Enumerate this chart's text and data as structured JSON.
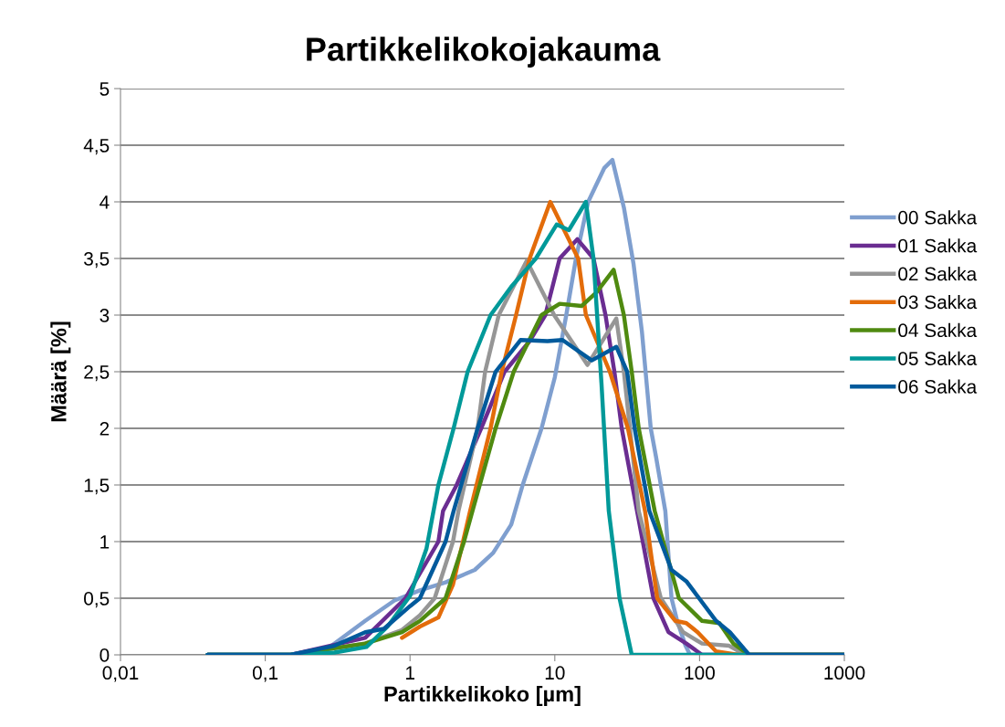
{
  "chart_data": {
    "type": "line",
    "title": "Partikkelikokojakauma",
    "xlabel": "Partikkelikoko [µm]",
    "ylabel": "Määrä [%]",
    "log": "x",
    "xlim": [
      0.01,
      1000
    ],
    "xticks": [
      {
        "value": 0.01,
        "label": "0,01"
      },
      {
        "value": 0.1,
        "label": "0,1"
      },
      1,
      10,
      100,
      1000
    ],
    "ylim": [
      0,
      5
    ],
    "yticks": [
      0,
      {
        "value": 0.5,
        "label": "0,5"
      },
      1,
      {
        "value": 1.5,
        "label": "1,5"
      },
      2,
      {
        "value": 2.5,
        "label": "2,5"
      },
      3,
      {
        "value": 3.5,
        "label": "3,5"
      },
      4,
      {
        "value": 4.5,
        "label": "4,5"
      },
      5
    ],
    "grid": "y",
    "legend": "right",
    "marker": "none",
    "line_style": "solid",
    "series": [
      {
        "name": "00 Sakka",
        "color": "#7f9fcf",
        "x": [
          0.04,
          0.15,
          0.28,
          0.49,
          0.78,
          1.17,
          1.76,
          2.8,
          3.75,
          5,
          6,
          8.1,
          10,
          12,
          14,
          17,
          22,
          25,
          30,
          35,
          40,
          46,
          50,
          58,
          64,
          70,
          80,
          86,
          1000
        ],
        "values": [
          0,
          0,
          0.07,
          0.3,
          0.48,
          0.57,
          0.64,
          0.75,
          0.9,
          1.15,
          1.5,
          2.0,
          2.45,
          3.0,
          3.5,
          4.0,
          4.3,
          4.37,
          3.95,
          3.45,
          2.85,
          2.0,
          1.75,
          1.27,
          0.5,
          0.3,
          0.08,
          0,
          0
        ]
      },
      {
        "name": "01 Sakka",
        "color": "#6a2d91",
        "x": [
          0.04,
          0.15,
          0.49,
          0.93,
          1.57,
          1.69,
          2.1,
          3.1,
          4.5,
          6.7,
          8.6,
          10.8,
          14.3,
          18.5,
          22.4,
          25.8,
          29,
          37,
          48,
          61,
          81,
          104,
          1000
        ],
        "values": [
          0,
          0,
          0.15,
          0.5,
          1.0,
          1.27,
          1.5,
          2.0,
          2.5,
          2.77,
          3.0,
          3.5,
          3.67,
          3.5,
          3.0,
          2.5,
          2.0,
          1.27,
          0.5,
          0.2,
          0.1,
          0,
          0
        ]
      },
      {
        "name": "02 Sakka",
        "color": "#969696",
        "x": [
          0.04,
          0.15,
          0.49,
          0.88,
          1.17,
          1.48,
          1.98,
          2.16,
          2.93,
          3.3,
          4.1,
          6.4,
          9.9,
          16.8,
          26.6,
          30,
          38,
          54,
          77,
          104,
          160,
          207,
          1000
        ],
        "values": [
          0,
          0,
          0.1,
          0.22,
          0.35,
          0.5,
          1.0,
          1.27,
          2.0,
          2.5,
          3.0,
          3.48,
          3.0,
          2.56,
          2.97,
          2.5,
          1.27,
          0.5,
          0.2,
          0.1,
          0.08,
          0,
          0
        ]
      },
      {
        "name": "03 Sakka",
        "color": "#e36c0a",
        "x": [
          0.88,
          1.17,
          1.57,
          1.98,
          2.6,
          3.6,
          4.3,
          5.4,
          6.7,
          9.3,
          14.5,
          16.4,
          24,
          32,
          42,
          51,
          68,
          81,
          97,
          130,
          185,
          1000
        ],
        "values": [
          0.15,
          0.25,
          0.33,
          0.62,
          1.27,
          2.0,
          2.5,
          3.0,
          3.5,
          4.0,
          3.5,
          3.0,
          2.5,
          2.0,
          1.27,
          0.5,
          0.3,
          0.28,
          0.2,
          0.03,
          0,
          0
        ]
      },
      {
        "name": "04 Sakka",
        "color": "#4f8a10",
        "x": [
          0.04,
          0.15,
          0.49,
          0.88,
          1.17,
          1.76,
          2.36,
          2.7,
          3.9,
          5.2,
          8.1,
          10.8,
          15.3,
          19.4,
          25.5,
          30,
          34,
          38,
          49,
          72,
          104,
          137,
          171,
          220,
          1000
        ],
        "values": [
          0,
          0,
          0.1,
          0.2,
          0.3,
          0.5,
          1.0,
          1.27,
          2.0,
          2.5,
          3.0,
          3.1,
          3.08,
          3.2,
          3.4,
          3.0,
          2.5,
          2.0,
          1.27,
          0.5,
          0.3,
          0.28,
          0.1,
          0,
          0
        ]
      },
      {
        "name": "05 Sakka",
        "color": "#009999",
        "x": [
          0.04,
          0.15,
          0.3,
          0.5,
          0.7,
          1,
          1.3,
          1.57,
          2,
          2.5,
          3.6,
          5,
          7.4,
          10.3,
          12.5,
          16.4,
          18.5,
          21,
          23.6,
          28,
          34,
          1000
        ],
        "values": [
          0,
          0,
          0.02,
          0.07,
          0.25,
          0.52,
          0.94,
          1.5,
          2.0,
          2.5,
          3.0,
          3.25,
          3.5,
          3.8,
          3.75,
          4.0,
          3.5,
          2.4,
          1.27,
          0.5,
          0,
          0
        ]
      },
      {
        "name": "06 Sakka",
        "color": "#005a9c",
        "x": [
          0.04,
          0.15,
          0.3,
          0.49,
          0.66,
          1.0,
          1.17,
          1.76,
          2.0,
          2.93,
          3.9,
          5.8,
          8.9,
          11.3,
          18,
          26.6,
          31.6,
          35.6,
          45,
          64,
          81,
          130,
          162,
          220,
          1000
        ],
        "values": [
          0,
          0,
          0.08,
          0.2,
          0.23,
          0.43,
          0.5,
          1.0,
          1.27,
          2.0,
          2.5,
          2.78,
          2.77,
          2.78,
          2.6,
          2.72,
          2.5,
          2.0,
          1.27,
          0.75,
          0.65,
          0.3,
          0.2,
          0,
          0
        ]
      }
    ]
  }
}
